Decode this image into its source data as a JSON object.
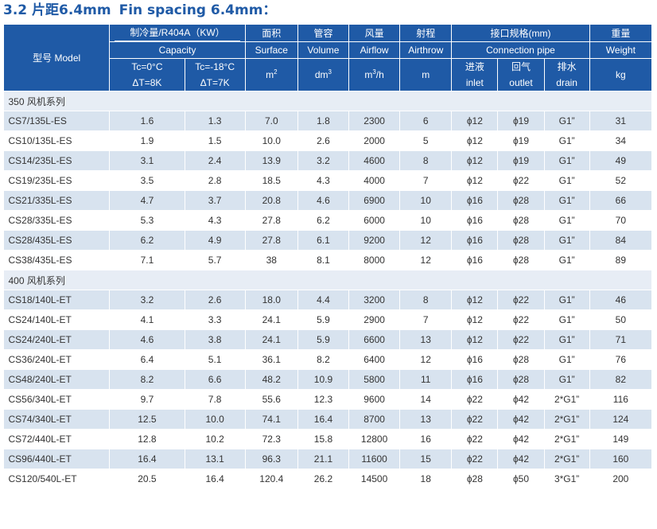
{
  "title": {
    "cn": "3.2 片距6.4mm",
    "en": "Fin spacing 6.4mm："
  },
  "header": {
    "model": "型号 Model",
    "capacity_cn": "制冷量/R404A（KW）",
    "capacity_en": "Capacity",
    "tc0": "Tc=0°C",
    "dt8": "ΔT=8K",
    "tc18": "Tc=-18°C",
    "dt7": "ΔT=7K",
    "surface_cn": "面积",
    "surface_en": "Surface",
    "surface_unit": "m",
    "surface_sup": "2",
    "volume_cn": "管容",
    "volume_en": "Volume",
    "volume_unit": "dm",
    "volume_sup": "3",
    "airflow_cn": "风量",
    "airflow_en": "Airflow",
    "airflow_unit": "m",
    "airflow_sup": "3",
    "airflow_unit_tail": "/h",
    "airthrow_cn": "射程",
    "airthrow_en": "Airthrow",
    "airthrow_unit": "m",
    "conn_cn": "接口规格(mm)",
    "conn_en": "Connection pipe",
    "inlet_cn": "进液",
    "inlet_en": "inlet",
    "outlet_cn": "回气",
    "outlet_en": "outlet",
    "drain_cn": "排水",
    "drain_en": "drain",
    "weight_cn": "重量",
    "weight_en": "Weight",
    "weight_unit": "kg"
  },
  "groups": [
    {
      "label": "350 风机系列",
      "rows": [
        [
          "CS7/135L-ES",
          "1.6",
          "1.3",
          "7.0",
          "1.8",
          "2300",
          "6",
          "ϕ12",
          "ϕ19",
          "G1”",
          "31"
        ],
        [
          "CS10/135L-ES",
          "1.9",
          "1.5",
          "10.0",
          "2.6",
          "2000",
          "5",
          "ϕ12",
          "ϕ19",
          "G1”",
          "34"
        ],
        [
          "CS14/235L-ES",
          "3.1",
          "2.4",
          "13.9",
          "3.2",
          "4600",
          "8",
          "ϕ12",
          "ϕ19",
          "G1”",
          "49"
        ],
        [
          "CS19/235L-ES",
          "3.5",
          "2.8",
          "18.5",
          "4.3",
          "4000",
          "7",
          "ϕ12",
          "ϕ22",
          "G1”",
          "52"
        ],
        [
          "CS21/335L-ES",
          "4.7",
          "3.7",
          "20.8",
          "4.6",
          "6900",
          "10",
          "ϕ16",
          "ϕ28",
          "G1”",
          "66"
        ],
        [
          "CS28/335L-ES",
          "5.3",
          "4.3",
          "27.8",
          "6.2",
          "6000",
          "10",
          "ϕ16",
          "ϕ28",
          "G1”",
          "70"
        ],
        [
          "CS28/435L-ES",
          "6.2",
          "4.9",
          "27.8",
          "6.1",
          "9200",
          "12",
          "ϕ16",
          "ϕ28",
          "G1”",
          "84"
        ],
        [
          "CS38/435L-ES",
          "7.1",
          "5.7",
          "38",
          "8.1",
          "8000",
          "12",
          "ϕ16",
          "ϕ28",
          "G1”",
          "89"
        ]
      ]
    },
    {
      "label": "400 风机系列",
      "rows": [
        [
          "CS18/140L-ET",
          "3.2",
          "2.6",
          "18.0",
          "4.4",
          "3200",
          "8",
          "ϕ12",
          "ϕ22",
          "G1”",
          "46"
        ],
        [
          "CS24/140L-ET",
          "4.1",
          "3.3",
          "24.1",
          "5.9",
          "2900",
          "7",
          "ϕ12",
          "ϕ22",
          "G1”",
          "50"
        ],
        [
          "CS24/240L-ET",
          "4.6",
          "3.8",
          "24.1",
          "5.9",
          "6600",
          "13",
          "ϕ12",
          "ϕ22",
          "G1”",
          "71"
        ],
        [
          "CS36/240L-ET",
          "6.4",
          "5.1",
          "36.1",
          "8.2",
          "6400",
          "12",
          "ϕ16",
          "ϕ28",
          "G1”",
          "76"
        ],
        [
          "CS48/240L-ET",
          "8.2",
          "6.6",
          "48.2",
          "10.9",
          "5800",
          "11",
          "ϕ16",
          "ϕ28",
          "G1”",
          "82"
        ],
        [
          "CS56/340L-ET",
          "9.7",
          "7.8",
          "55.6",
          "12.3",
          "9600",
          "14",
          "ϕ22",
          "ϕ42",
          "2*G1”",
          "116"
        ],
        [
          "CS74/340L-ET",
          "12.5",
          "10.0",
          "74.1",
          "16.4",
          "8700",
          "13",
          "ϕ22",
          "ϕ42",
          "2*G1”",
          "124"
        ],
        [
          "CS72/440L-ET",
          "12.8",
          "10.2",
          "72.3",
          "15.8",
          "12800",
          "16",
          "ϕ22",
          "ϕ42",
          "2*G1”",
          "149"
        ],
        [
          "CS96/440L-ET",
          "16.4",
          "13.1",
          "96.3",
          "21.1",
          "11600",
          "15",
          "ϕ22",
          "ϕ42",
          "2*G1”",
          "160"
        ],
        [
          "CS120/540L-ET",
          "20.5",
          "16.4",
          "120.4",
          "26.2",
          "14500",
          "18",
          "ϕ28",
          "ϕ50",
          "3*G1”",
          "200"
        ]
      ]
    }
  ],
  "colors": {
    "header_bg": "#1f5aa6",
    "row_stripe": "#d8e3ef",
    "group_bg": "#e7edf5",
    "title": "#1f5aa6"
  }
}
